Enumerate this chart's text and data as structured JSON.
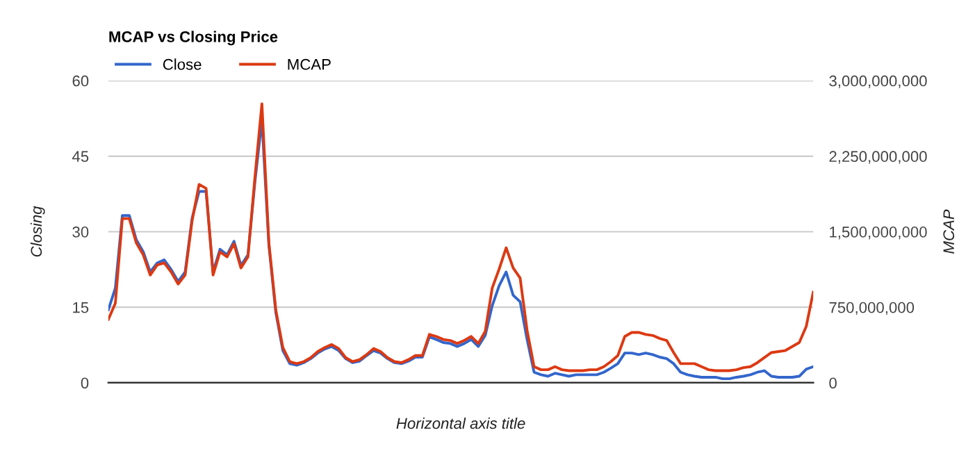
{
  "chart_data": {
    "type": "line",
    "title": "MCAP vs Closing Price",
    "xlabel": "Horizontal axis title",
    "ylabel": "Closing",
    "y2label": "MCAP",
    "categories": [
      null,
      null,
      null,
      null,
      null,
      null,
      null,
      null,
      null,
      null,
      null,
      null,
      null,
      null,
      null,
      null,
      null,
      null,
      null,
      null,
      null,
      null,
      null,
      null,
      null,
      null,
      null,
      null,
      null,
      null,
      null,
      null,
      null,
      null,
      null,
      null,
      null,
      null,
      null,
      null,
      null,
      null,
      null,
      null,
      null,
      null,
      null,
      null,
      null,
      null,
      null,
      null,
      null,
      null,
      null,
      null,
      null,
      null,
      null,
      null,
      null,
      null,
      null,
      null,
      null,
      null,
      null,
      null,
      null,
      null,
      null,
      null,
      null,
      null,
      null,
      null,
      null,
      null,
      null,
      null,
      null,
      null,
      null,
      null,
      null,
      null,
      null,
      null,
      null,
      null,
      null,
      null,
      null,
      null,
      null,
      null,
      null,
      null,
      null,
      null,
      null,
      null
    ],
    "series": [
      {
        "name": "Close",
        "color": "#3366cc",
        "values": [
          14.5,
          18.8,
          33.2,
          33.2,
          28.4,
          26.0,
          22.0,
          23.8,
          24.4,
          22.5,
          20.1,
          22.0,
          32.7,
          38.0,
          38.0,
          22.0,
          26.5,
          25.4,
          28.1,
          23.3,
          25.4,
          39.9,
          52.2,
          27.3,
          13.9,
          6.4,
          3.8,
          3.5,
          4.0,
          4.8,
          5.9,
          6.7,
          7.2,
          6.4,
          4.8,
          4.0,
          4.3,
          5.4,
          6.4,
          5.9,
          4.8,
          4.0,
          3.8,
          4.3,
          5.1,
          5.1,
          9.1,
          8.6,
          8.0,
          7.8,
          7.2,
          7.8,
          8.6,
          7.2,
          9.4,
          15.3,
          19.3,
          22.0,
          17.4,
          16.1,
          8.6,
          2.1,
          1.6,
          1.3,
          1.9,
          1.6,
          1.3,
          1.6,
          1.6,
          1.6,
          1.6,
          2.1,
          2.9,
          3.8,
          5.9,
          5.9,
          5.6,
          5.9,
          5.6,
          5.1,
          4.8,
          3.8,
          2.1,
          1.6,
          1.3,
          1.1,
          1.1,
          1.1,
          0.8,
          0.8,
          1.1,
          1.3,
          1.6,
          2.1,
          2.4,
          1.3,
          1.1,
          1.1,
          1.1,
          1.3,
          2.7,
          3.2
        ]
      },
      {
        "name": "MCAP",
        "color": "#dc3912",
        "axis": "y2",
        "values": [
          630000000,
          790000000,
          1630000000,
          1630000000,
          1390000000,
          1270000000,
          1070000000,
          1170000000,
          1190000000,
          1100000000,
          980000000,
          1070000000,
          1610000000,
          1970000000,
          1930000000,
          1070000000,
          1300000000,
          1250000000,
          1380000000,
          1140000000,
          1250000000,
          2040000000,
          2770000000,
          1390000000,
          720000000,
          350000000,
          210000000,
          190000000,
          210000000,
          250000000,
          310000000,
          350000000,
          380000000,
          340000000,
          250000000,
          210000000,
          230000000,
          280000000,
          340000000,
          310000000,
          250000000,
          210000000,
          200000000,
          230000000,
          270000000,
          270000000,
          480000000,
          460000000,
          430000000,
          420000000,
          390000000,
          420000000,
          460000000,
          390000000,
          510000000,
          940000000,
          1130000000,
          1340000000,
          1140000000,
          1040000000,
          520000000,
          160000000,
          130000000,
          130000000,
          160000000,
          130000000,
          120000000,
          120000000,
          120000000,
          130000000,
          130000000,
          160000000,
          210000000,
          270000000,
          460000000,
          500000000,
          500000000,
          480000000,
          470000000,
          440000000,
          420000000,
          300000000,
          190000000,
          190000000,
          190000000,
          160000000,
          130000000,
          120000000,
          120000000,
          120000000,
          130000000,
          150000000,
          160000000,
          200000000,
          250000000,
          300000000,
          310000000,
          320000000,
          360000000,
          400000000,
          560000000,
          900000000
        ]
      }
    ],
    "ylim": [
      0,
      60
    ],
    "yticks": [
      0,
      15,
      30,
      45,
      60
    ],
    "y2lim": [
      0,
      3000000000
    ],
    "y2ticks": [
      {
        "value": 0,
        "label": "0"
      },
      {
        "value": 750000000,
        "label": "750,000,000"
      },
      {
        "value": 1500000000,
        "label": "1,500,000,000"
      },
      {
        "value": 2250000000,
        "label": "2,250,000,000"
      },
      {
        "value": 3000000000,
        "label": "3,000,000,000"
      }
    ],
    "grid": "y",
    "legend": "top left",
    "tick_labels": "y",
    "line_style": "solid",
    "marker": "none"
  }
}
